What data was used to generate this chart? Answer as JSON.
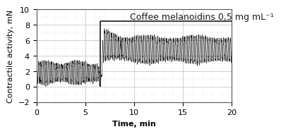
{
  "title": "Coffee melanoidins 0,5 mg mL⁻¹",
  "xlabel": "Time, min",
  "ylabel": "Contractile activity, mN",
  "xlim": [
    0,
    20
  ],
  "ylim": [
    -2,
    10
  ],
  "yticks": [
    -2,
    0,
    2,
    4,
    6,
    8,
    10
  ],
  "xticks": [
    0,
    5,
    10,
    15,
    20
  ],
  "transition_time": 6.5,
  "baseline_mean": 1.8,
  "baseline_amp": 1.2,
  "post_mean_start": 5.5,
  "post_mean_settle": 4.8,
  "post_amp_start": 1.8,
  "post_amp_settle": 1.5,
  "freq_pre": 6.0,
  "freq_post": 5.5,
  "horizontal_line_y": 8.5,
  "line_color": "#1a1a1a",
  "bg_color": "#ffffff",
  "grid_color": "#c8c8c8",
  "title_fontsize": 9,
  "label_fontsize": 8,
  "tick_fontsize": 8
}
